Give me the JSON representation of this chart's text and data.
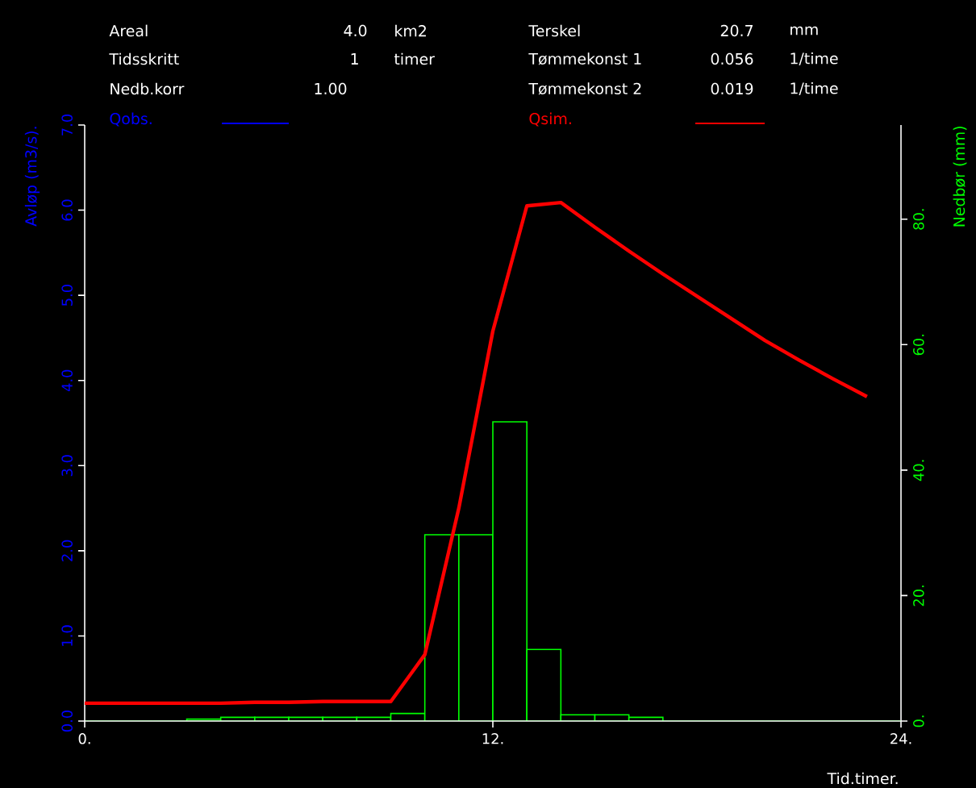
{
  "chart_data": {
    "type": "line",
    "annotations": [
      "Areal",
      "4.0",
      "km2",
      "Tidsskritt",
      "1",
      "timer",
      "Nedb.korr",
      "1.00",
      "Terskel",
      "20.7",
      "mm",
      "Tømmekonst 1",
      "0.056",
      "1/time",
      "Tømmekonst 2",
      "0.019",
      "1/time"
    ],
    "xlabel": "Tid.timer.",
    "ylabel": "Avløp (m3/s).",
    "y2label": "Nedbør (mm)",
    "x": [
      0,
      1,
      2,
      3,
      4,
      5,
      6,
      7,
      8,
      9,
      10,
      11,
      12,
      13,
      14,
      15,
      16,
      17,
      18,
      19,
      20,
      21,
      22,
      23
    ],
    "series": [
      {
        "name": "Qobs.",
        "color": "#0000ff",
        "values": [
          null,
          null,
          null,
          null,
          null,
          null,
          null,
          null,
          null,
          null,
          null,
          null,
          null,
          null,
          null,
          null,
          null,
          null,
          null,
          null,
          null,
          null,
          null,
          null
        ]
      },
      {
        "name": "Qsim.",
        "color": "#ff0000",
        "values": [
          0.21,
          0.21,
          0.21,
          0.21,
          0.21,
          0.22,
          0.22,
          0.23,
          0.23,
          0.23,
          0.78,
          2.5,
          4.58,
          6.05,
          6.09,
          5.8,
          5.52,
          5.25,
          4.99,
          4.73,
          4.47,
          4.24,
          4.02,
          3.81
        ]
      },
      {
        "type": "histogram",
        "axis": "y2",
        "color": "#00ff00",
        "bins": [
          0,
          1,
          2,
          3,
          4,
          5,
          6,
          7,
          8,
          9,
          10,
          11,
          12,
          13,
          14,
          15,
          16,
          17,
          18,
          19,
          20,
          21,
          22,
          23,
          24
        ],
        "values": [
          0,
          0,
          0,
          0.3,
          0.6,
          0.6,
          0.6,
          0.6,
          0.6,
          1.2,
          29.7,
          29.7,
          47.7,
          11.4,
          1.0,
          1.0,
          0.6,
          0,
          0,
          0,
          0,
          0,
          0,
          0
        ]
      }
    ],
    "xlim": [
      0,
      24
    ],
    "xticks": [
      {
        "value": 0,
        "label": "0."
      },
      {
        "value": 12,
        "label": "12."
      },
      {
        "value": 24,
        "label": "24."
      }
    ],
    "ylim": [
      0,
      7
    ],
    "yticks": [
      {
        "value": 0,
        "label": "0.0"
      },
      {
        "value": 1,
        "label": "1.0"
      },
      {
        "value": 2,
        "label": "2.0"
      },
      {
        "value": 3,
        "label": "3.0"
      },
      {
        "value": 4,
        "label": "4.0"
      },
      {
        "value": 5,
        "label": "5.0"
      },
      {
        "value": 6,
        "label": "6.0"
      },
      {
        "value": 7,
        "label": "7.0"
      }
    ],
    "y2lim": [
      0,
      95
    ],
    "y2ticks": [
      {
        "value": 0,
        "label": "0."
      },
      {
        "value": 20,
        "label": "20."
      },
      {
        "value": 40,
        "label": "40."
      },
      {
        "value": 60,
        "label": "60."
      },
      {
        "value": 80,
        "label": "80."
      }
    ],
    "legend": "top",
    "grid": false,
    "marker": "none",
    "line_style": "solid"
  }
}
